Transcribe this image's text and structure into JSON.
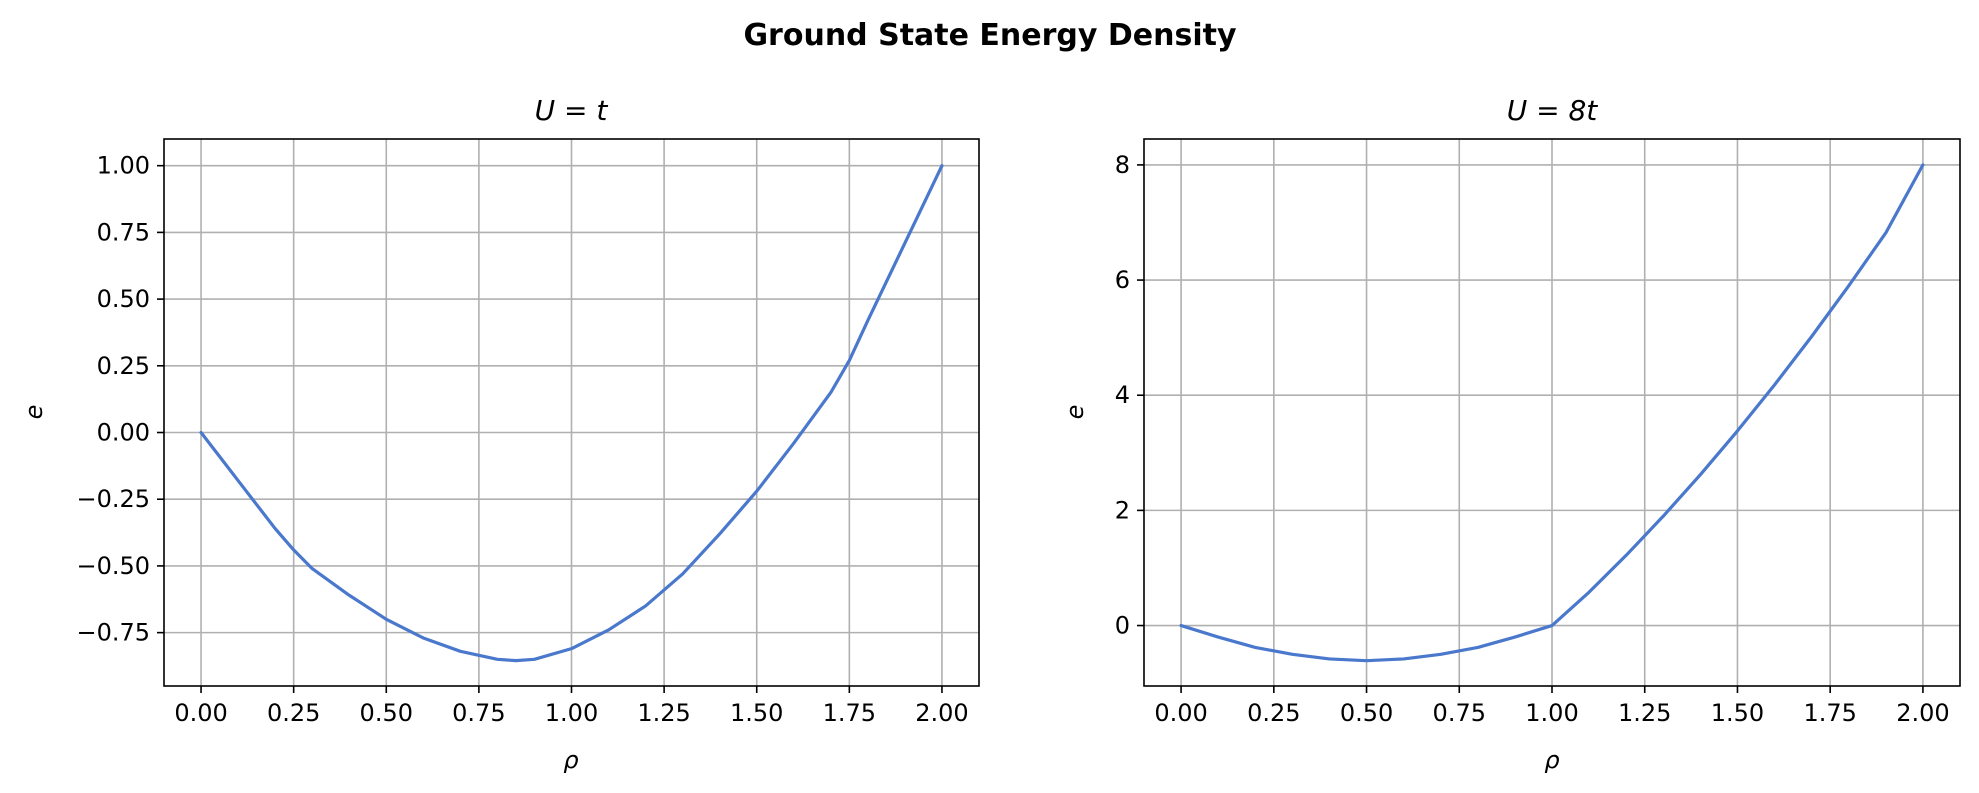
{
  "figure_title": "Ground State Energy Density",
  "colors": {
    "series": "#4a78cc",
    "grid": "#b0b0b0"
  },
  "chart_data": [
    {
      "type": "line",
      "title": "U = t",
      "xlabel": "ρ",
      "ylabel": "e",
      "grid": true,
      "xlim": [
        -0.1,
        2.1
      ],
      "ylim": [
        -0.95,
        1.1
      ],
      "xticks": [
        0,
        0.25,
        0.5,
        0.75,
        1.0,
        1.25,
        1.5,
        1.75,
        2.0
      ],
      "xtick_labels": [
        "0.00",
        "0.25",
        "0.50",
        "0.75",
        "1.00",
        "1.25",
        "1.50",
        "1.75",
        "2.00"
      ],
      "yticks": [
        -0.75,
        -0.5,
        -0.25,
        0.0,
        0.25,
        0.5,
        0.75,
        1.0
      ],
      "ytick_labels": [
        "−0.75",
        "−0.50",
        "−0.25",
        "0.00",
        "0.25",
        "0.50",
        "0.75",
        "1.00"
      ],
      "series": [
        {
          "x": [
            0,
            0.05,
            0.1,
            0.15,
            0.2,
            0.25,
            0.3,
            0.4,
            0.5,
            0.6,
            0.7,
            0.8,
            0.85,
            0.9,
            1.0,
            1.1,
            1.2,
            1.3,
            1.4,
            1.5,
            1.6,
            1.7,
            1.75,
            1.8,
            1.9,
            2.0
          ],
          "y": [
            0.0,
            -0.09,
            -0.18,
            -0.27,
            -0.36,
            -0.44,
            -0.51,
            -0.61,
            -0.7,
            -0.77,
            -0.82,
            -0.85,
            -0.855,
            -0.85,
            -0.81,
            -0.74,
            -0.65,
            -0.53,
            -0.38,
            -0.22,
            -0.04,
            0.15,
            0.27,
            0.42,
            0.71,
            1.0
          ]
        }
      ]
    },
    {
      "type": "line",
      "title": "U = 8t",
      "xlabel": "ρ",
      "ylabel": "e",
      "grid": true,
      "xlim": [
        -0.1,
        2.1
      ],
      "ylim": [
        -1.05,
        8.45
      ],
      "xticks": [
        0,
        0.25,
        0.5,
        0.75,
        1.0,
        1.25,
        1.5,
        1.75,
        2.0
      ],
      "xtick_labels": [
        "0.00",
        "0.25",
        "0.50",
        "0.75",
        "1.00",
        "1.25",
        "1.50",
        "1.75",
        "2.00"
      ],
      "yticks": [
        0,
        2,
        4,
        6,
        8
      ],
      "ytick_labels": [
        "0",
        "2",
        "4",
        "6",
        "8"
      ],
      "series": [
        {
          "x": [
            0,
            0.1,
            0.2,
            0.3,
            0.4,
            0.5,
            0.6,
            0.7,
            0.8,
            0.9,
            1.0,
            1.1,
            1.2,
            1.3,
            1.4,
            1.5,
            1.6,
            1.7,
            1.8,
            1.9,
            2.0
          ],
          "y": [
            0.0,
            -0.2,
            -0.38,
            -0.5,
            -0.58,
            -0.61,
            -0.58,
            -0.5,
            -0.38,
            -0.2,
            0.0,
            0.58,
            1.22,
            1.9,
            2.62,
            3.38,
            4.18,
            5.02,
            5.9,
            6.82,
            8.0
          ]
        }
      ]
    }
  ]
}
